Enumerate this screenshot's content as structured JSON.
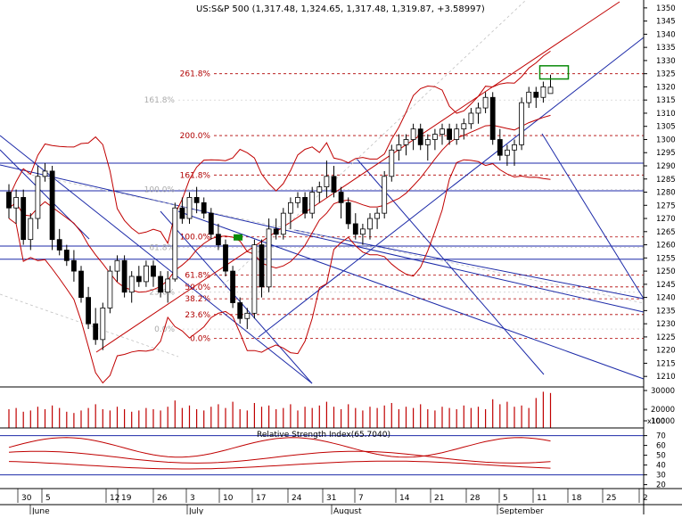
{
  "chart_data": {
    "type": "candlestick",
    "title": "US:S&P 500 (1,317.48, 1,324.65, 1,317.48, 1,319.87, +3.58997)",
    "price_axis": {
      "ticks": [
        1210,
        1215,
        1220,
        1225,
        1230,
        1235,
        1240,
        1245,
        1250,
        1255,
        1260,
        1265,
        1270,
        1275,
        1280,
        1285,
        1290,
        1295,
        1300,
        1305,
        1310,
        1315,
        1320,
        1325,
        1330,
        1335,
        1340,
        1345,
        1350
      ],
      "range": [
        1206,
        1353
      ]
    },
    "volume_axis": {
      "ticks": [
        "30000",
        "20000",
        "10000"
      ],
      "multiplier_label": "x100",
      "range": [
        0,
        30000
      ]
    },
    "rsi_panel": {
      "title": "Relative Strength Index(65.7040)",
      "ticks": [
        70,
        60,
        50,
        40,
        30,
        20
      ],
      "range": [
        16,
        76
      ]
    },
    "x_axis": {
      "day_ticks": [
        "30",
        "5",
        "12",
        "19",
        "26",
        "3",
        "10",
        "17",
        "24",
        "31",
        "7",
        "14",
        "21",
        "28",
        "5",
        "11",
        "18",
        "25",
        "2"
      ],
      "month_labels": [
        "June",
        "July",
        "August",
        "September"
      ]
    },
    "fib_levels": [
      {
        "label": "261.8%",
        "value": 1325
      },
      {
        "label": "200.0%",
        "value": 1301.5
      },
      {
        "label": "161.8%",
        "value": 1286.5
      },
      {
        "label": "100.0%",
        "value": 1263
      },
      {
        "label": "61.8%",
        "value": 1248.5
      },
      {
        "label": "50.0%",
        "value": 1244
      },
      {
        "label": "38.2%",
        "value": 1239.5
      },
      {
        "label": "23.6%",
        "value": 1233.5
      },
      {
        "label": "0.0%",
        "value": 1224.5
      }
    ],
    "faint_labels": [
      {
        "label": "161.8%",
        "value": 1315
      },
      {
        "label": "100.0%",
        "value": 1281
      },
      {
        "label": "61.8%",
        "value": 1259
      },
      {
        "label": "23.6%",
        "value": 1242
      },
      {
        "label": "0.0%",
        "value": 1228
      }
    ],
    "horizontal_lines": [
      1291,
      1280.5,
      1259.5,
      1254.5
    ],
    "candles": [
      [
        1280,
        1283,
        1270,
        1274
      ],
      [
        1274,
        1281,
        1268,
        1278
      ],
      [
        1278,
        1281,
        1260,
        1262
      ],
      [
        1262,
        1272,
        1258,
        1270
      ],
      [
        1270,
        1290,
        1266,
        1286
      ],
      [
        1286,
        1291,
        1284,
        1288
      ],
      [
        1288,
        1290,
        1258,
        1262
      ],
      [
        1262,
        1266,
        1256,
        1258
      ],
      [
        1258,
        1260,
        1252,
        1254
      ],
      [
        1254,
        1258,
        1246,
        1250
      ],
      [
        1250,
        1252,
        1238,
        1240
      ],
      [
        1240,
        1244,
        1228,
        1230
      ],
      [
        1230,
        1236,
        1222,
        1224
      ],
      [
        1224,
        1238,
        1220,
        1236
      ],
      [
        1236,
        1252,
        1234,
        1250
      ],
      [
        1250,
        1256,
        1246,
        1254
      ],
      [
        1254,
        1256,
        1240,
        1242
      ],
      [
        1242,
        1250,
        1238,
        1248
      ],
      [
        1248,
        1252,
        1244,
        1246
      ],
      [
        1246,
        1254,
        1244,
        1252
      ],
      [
        1252,
        1254,
        1244,
        1248
      ],
      [
        1248,
        1250,
        1240,
        1242
      ],
      [
        1242,
        1250,
        1238,
        1247
      ],
      [
        1247,
        1276,
        1246,
        1274
      ],
      [
        1274,
        1278,
        1268,
        1270
      ],
      [
        1270,
        1280,
        1268,
        1278
      ],
      [
        1278,
        1282,
        1272,
        1276
      ],
      [
        1276,
        1278,
        1270,
        1272
      ],
      [
        1272,
        1274,
        1262,
        1264
      ],
      [
        1264,
        1268,
        1258,
        1260
      ],
      [
        1260,
        1262,
        1248,
        1250
      ],
      [
        1250,
        1252,
        1236,
        1238
      ],
      [
        1238,
        1240,
        1230,
        1232
      ],
      [
        1232,
        1236,
        1228,
        1234
      ],
      [
        1234,
        1262,
        1232,
        1260
      ],
      [
        1260,
        1262,
        1240,
        1244
      ],
      [
        1244,
        1270,
        1242,
        1266
      ],
      [
        1266,
        1270,
        1262,
        1264
      ],
      [
        1264,
        1274,
        1262,
        1272
      ],
      [
        1272,
        1278,
        1266,
        1276
      ],
      [
        1276,
        1280,
        1274,
        1278
      ],
      [
        1278,
        1280,
        1270,
        1272
      ],
      [
        1272,
        1282,
        1270,
        1280
      ],
      [
        1280,
        1284,
        1276,
        1282
      ],
      [
        1282,
        1292,
        1278,
        1286
      ],
      [
        1286,
        1290,
        1278,
        1280
      ],
      [
        1280,
        1282,
        1270,
        1276
      ],
      [
        1276,
        1278,
        1266,
        1268
      ],
      [
        1268,
        1272,
        1262,
        1264
      ],
      [
        1264,
        1268,
        1260,
        1266
      ],
      [
        1266,
        1272,
        1262,
        1270
      ],
      [
        1270,
        1274,
        1266,
        1272
      ],
      [
        1272,
        1288,
        1270,
        1286
      ],
      [
        1286,
        1298,
        1284,
        1296
      ],
      [
        1296,
        1302,
        1292,
        1298
      ],
      [
        1298,
        1302,
        1294,
        1300
      ],
      [
        1300,
        1306,
        1296,
        1304
      ],
      [
        1304,
        1306,
        1296,
        1298
      ],
      [
        1298,
        1302,
        1292,
        1300
      ],
      [
        1300,
        1304,
        1296,
        1302
      ],
      [
        1302,
        1306,
        1298,
        1304
      ],
      [
        1304,
        1306,
        1298,
        1300
      ],
      [
        1300,
        1306,
        1298,
        1304
      ],
      [
        1304,
        1308,
        1300,
        1306
      ],
      [
        1306,
        1312,
        1304,
        1310
      ],
      [
        1310,
        1314,
        1306,
        1312
      ],
      [
        1312,
        1318,
        1310,
        1316
      ],
      [
        1316,
        1318,
        1298,
        1300
      ],
      [
        1300,
        1304,
        1292,
        1294
      ],
      [
        1294,
        1298,
        1290,
        1296
      ],
      [
        1296,
        1300,
        1290,
        1298
      ],
      [
        1298,
        1316,
        1296,
        1314
      ],
      [
        1314,
        1320,
        1312,
        1318
      ],
      [
        1318,
        1320,
        1312,
        1316
      ],
      [
        1316,
        1322,
        1314,
        1320
      ],
      [
        1317.48,
        1324.65,
        1317.48,
        1319.87
      ]
    ],
    "volume": [
      15,
      16,
      13,
      14,
      17,
      15,
      18,
      16,
      13,
      12,
      14,
      16,
      19,
      15,
      14,
      17,
      15,
      13,
      14,
      16,
      15,
      14,
      17,
      22,
      16,
      18,
      15,
      14,
      17,
      19,
      16,
      21,
      15,
      14,
      20,
      17,
      18,
      15,
      16,
      19,
      14,
      17,
      16,
      18,
      21,
      17,
      15,
      19,
      16,
      14,
      17,
      16,
      18,
      20,
      15,
      17,
      16,
      19,
      15,
      14,
      17,
      16,
      15,
      18,
      16,
      17,
      15,
      23,
      19,
      21,
      17,
      18,
      16,
      24,
      29,
      28
    ],
    "highlight_box": {
      "price_top": 1328,
      "price_bottom": 1323
    }
  }
}
